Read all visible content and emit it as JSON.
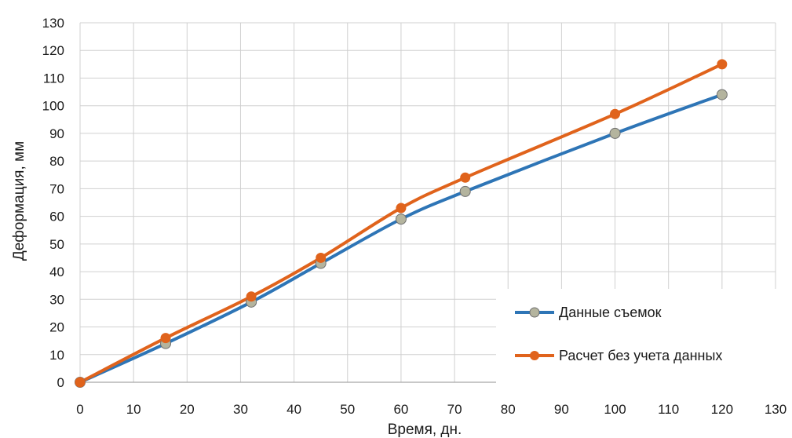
{
  "chart_data": {
    "type": "line",
    "xlabel": "Время, дн.",
    "ylabel": "Деформация, мм",
    "xlim": [
      0,
      130
    ],
    "ylim": [
      0,
      130
    ],
    "xticks": [
      0,
      10,
      20,
      30,
      40,
      50,
      60,
      70,
      80,
      90,
      100,
      110,
      120,
      130
    ],
    "yticks": [
      0,
      10,
      20,
      30,
      40,
      50,
      60,
      70,
      80,
      90,
      100,
      110,
      120,
      130
    ],
    "grid": true,
    "legend_position": "bottom-right",
    "series": [
      {
        "name": "Данные съемок",
        "line_color": "#2e75b6",
        "marker_color": "#b4b49e",
        "x": [
          0,
          16,
          32,
          45,
          60,
          72,
          100,
          120
        ],
        "y": [
          0,
          14,
          29,
          43,
          59,
          69,
          90,
          104
        ]
      },
      {
        "name": "Расчет без учета данных",
        "line_color": "#e0631c",
        "marker_color": "#e0631c",
        "x": [
          0,
          16,
          32,
          45,
          60,
          72,
          100,
          120
        ],
        "y": [
          0,
          16,
          31,
          45,
          63,
          74,
          97,
          115
        ]
      }
    ]
  }
}
